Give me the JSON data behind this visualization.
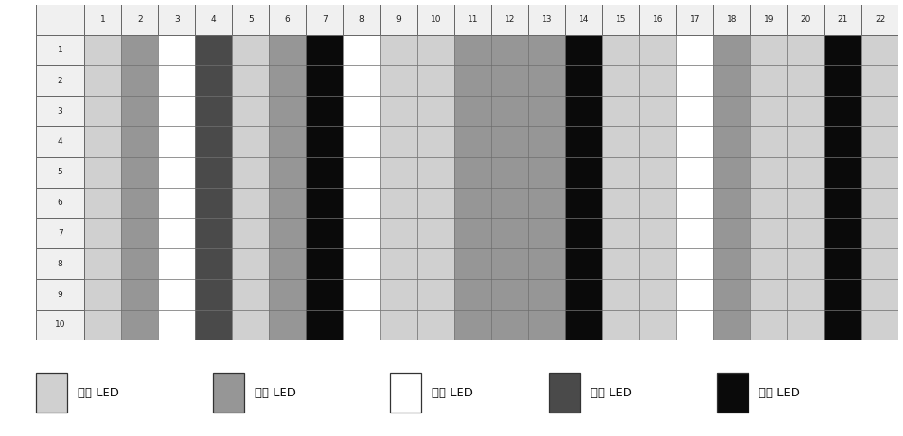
{
  "rows": 10,
  "cols": 22,
  "row_labels": [
    "1",
    "2",
    "3",
    "4",
    "5",
    "6",
    "7",
    "8",
    "9",
    "10"
  ],
  "col_labels": [
    "1",
    "2",
    "3",
    "4",
    "5",
    "6",
    "7",
    "8",
    "9",
    "10",
    "11",
    "12",
    "13",
    "14",
    "15",
    "16",
    "17",
    "18",
    "19",
    "20",
    "21",
    "22"
  ],
  "colors": {
    "red": "#d0d0d0",
    "blue": "#969696",
    "white": "#ffffff",
    "green": "#4a4a4a",
    "yellow": "#0a0a0a"
  },
  "col_color_map": {
    "1": "red",
    "2": "blue",
    "3": "white",
    "4": "green",
    "5": "red",
    "6": "blue",
    "7": "yellow",
    "8": "white",
    "9": "red",
    "10": "red",
    "11": "blue",
    "12": "blue",
    "13": "blue",
    "14": "yellow",
    "15": "red",
    "16": "red",
    "17": "white",
    "18": "blue",
    "19": "red",
    "20": "red",
    "21": "yellow",
    "22": "red"
  },
  "legend_items": [
    {
      "label": "红色 LED",
      "color": "#d0d0d0"
    },
    {
      "label": "蓝色 LED",
      "color": "#969696"
    },
    {
      "label": "白色 LED",
      "color": "#ffffff"
    },
    {
      "label": "绿色 LED",
      "color": "#4a4a4a"
    },
    {
      "label": "黄色 LED",
      "color": "#0a0a0a"
    }
  ],
  "grid_color": "#666666",
  "header_bg": "#f0f0f0",
  "cell_bg": "#f8f8f8",
  "bg_color": "#ffffff",
  "fig_width": 10.0,
  "fig_height": 4.83,
  "dpi": 100
}
